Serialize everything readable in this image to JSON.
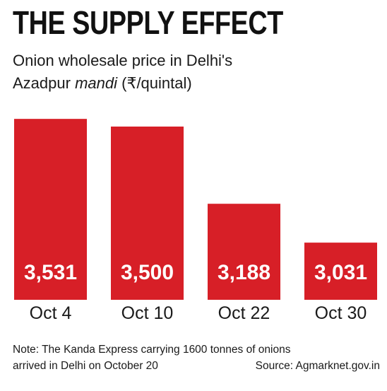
{
  "title": "THE SUPPLY EFFECT",
  "subtitle": {
    "line1": "Onion wholesale price in Delhi's",
    "line2_text": "Azadpur",
    "line2_italic": "mandi",
    "line2_unit": "(₹/quintal)"
  },
  "chart_data": {
    "type": "bar",
    "categories": [
      "Oct 4",
      "Oct 10",
      "Oct 22",
      "Oct 30"
    ],
    "values": [
      3531,
      3500,
      3188,
      3031
    ],
    "value_labels": [
      "3,531",
      "3,500",
      "3,188",
      "3,031"
    ],
    "title": "THE SUPPLY EFFECT",
    "ylabel": "",
    "xlabel": "",
    "ylim": [
      2800,
      3560
    ],
    "bar_color": "#d71f27",
    "grid": false
  },
  "note": {
    "line1": "Note: The Kanda Express carrying 1600 tonnes of onions",
    "line2": "arrived in Delhi on October 20",
    "source": "Source: Agmarknet.gov.in"
  }
}
